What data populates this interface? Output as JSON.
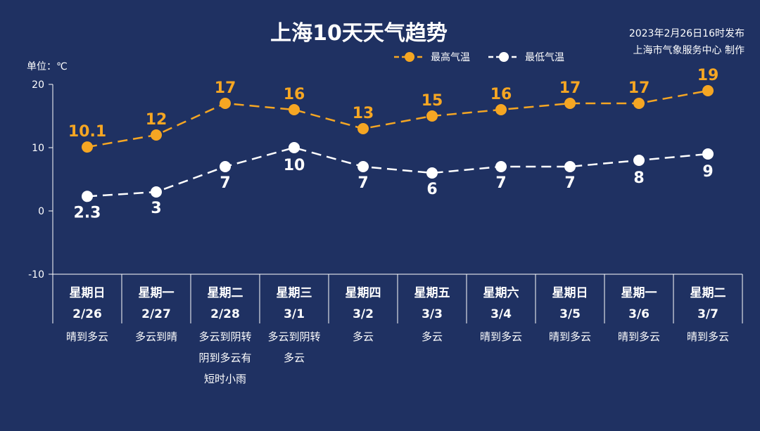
{
  "header": {
    "title": "上海10天天气趋势",
    "issued": "2023年2月26日16时发布",
    "producer": "上海市气象服务中心 制作",
    "unit_label": "单位：℃"
  },
  "colors": {
    "background": "#1f3162",
    "high": "#f5a623",
    "low": "#ffffff",
    "axis": "#ffffff"
  },
  "chart_data": {
    "type": "line",
    "title": "上海10天天气趋势",
    "ylabel": "单位：℃",
    "ylim": [
      -10,
      20
    ],
    "yticks": [
      20,
      10,
      0,
      -10
    ],
    "legend": "top",
    "grid": false,
    "weekdays": [
      "星期日",
      "星期一",
      "星期二",
      "星期三",
      "星期四",
      "星期五",
      "星期六",
      "星期日",
      "星期一",
      "星期二"
    ],
    "dates": [
      "2/26",
      "2/27",
      "2/28",
      "3/1",
      "3/2",
      "3/3",
      "3/4",
      "3/5",
      "3/6",
      "3/7"
    ],
    "weather": [
      [
        "晴到多云"
      ],
      [
        "多云到晴"
      ],
      [
        "多云到阴转",
        "阴到多云有",
        "短时小雨"
      ],
      [
        "多云到阴转",
        "多云"
      ],
      [
        "多云"
      ],
      [
        "多云"
      ],
      [
        "晴到多云"
      ],
      [
        "晴到多云"
      ],
      [
        "晴到多云"
      ],
      [
        "晴到多云"
      ]
    ],
    "series": [
      {
        "name": "最高气温",
        "values": [
          10.1,
          12,
          17,
          16,
          13,
          15,
          16,
          17,
          17,
          19
        ],
        "labels": [
          "10.1",
          "12",
          "17",
          "16",
          "13",
          "15",
          "16",
          "17",
          "17",
          "19"
        ]
      },
      {
        "name": "最低气温",
        "values": [
          2.3,
          3,
          7,
          10,
          7,
          6,
          7,
          7,
          8,
          9
        ],
        "labels": [
          "2.3",
          "3",
          "7",
          "10",
          "7",
          "6",
          "7",
          "7",
          "8",
          "9"
        ]
      }
    ]
  }
}
